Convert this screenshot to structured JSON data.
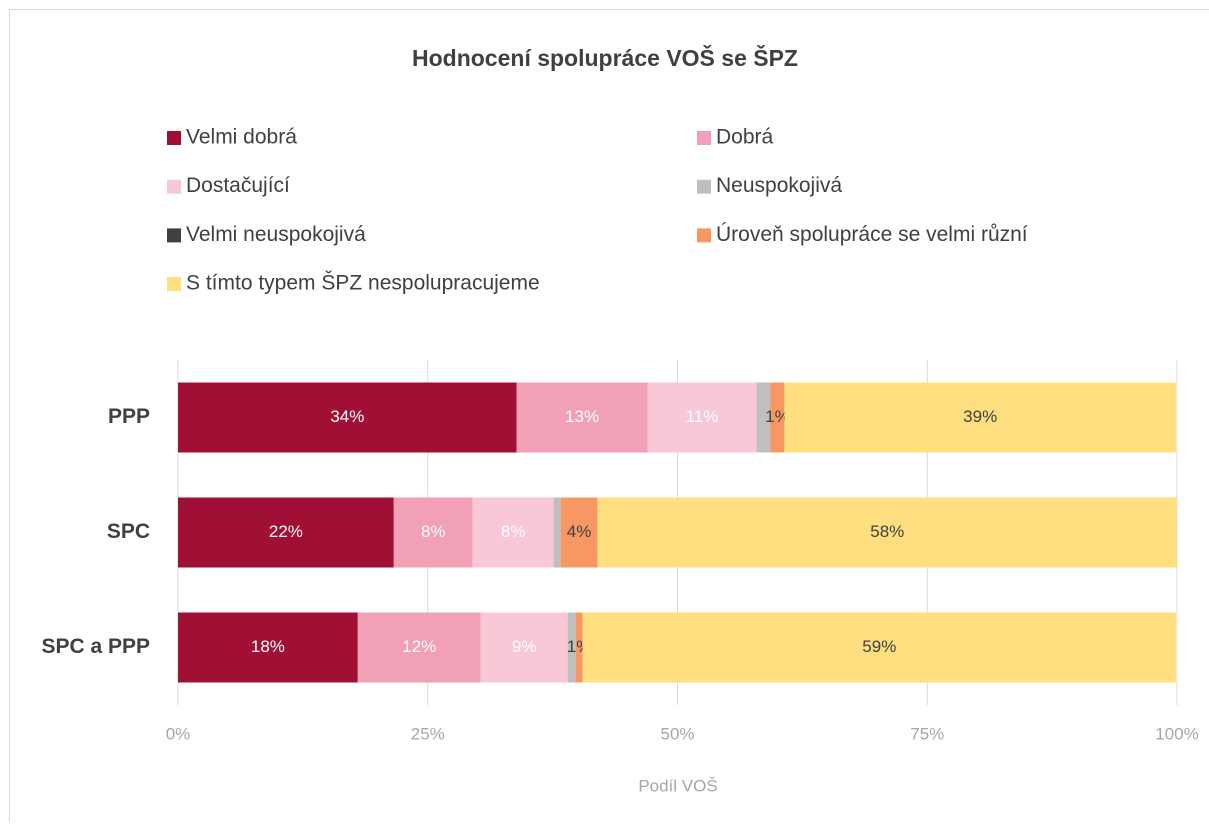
{
  "chart_data": {
    "type": "stacked-bar-horizontal",
    "title": "Hodnocení spolupráce VOŠ se ŠPZ",
    "x_label": "Podíl VOŠ",
    "categories": [
      "PPP",
      "SPC",
      "SPC a PPP"
    ],
    "series": [
      {
        "name": "Velmi dobrá",
        "color": "#a01035",
        "values": [
          33.9,
          21.6,
          18.0
        ],
        "value_labels": [
          "34%",
          "22%",
          "18%"
        ]
      },
      {
        "name": "Dobrá",
        "color": "#f2a0b5",
        "values": [
          13.1,
          7.9,
          12.3
        ],
        "value_labels": [
          "13%",
          "8%",
          "12%"
        ]
      },
      {
        "name": "Dostačující",
        "color": "#f8c8d6",
        "values": [
          10.9,
          8.1,
          8.7
        ],
        "value_labels": [
          "11%",
          "8%",
          "9%"
        ]
      },
      {
        "name": "Neuspokojivá",
        "color": "#bfbfbf",
        "values": [
          1.4,
          0.7,
          0.8
        ],
        "value_labels": [
          null,
          null,
          null
        ]
      },
      {
        "name": "Velmi neuspokojivá",
        "color": "#404040",
        "values": [
          0,
          0,
          0
        ],
        "value_labels": [
          null,
          null,
          null
        ]
      },
      {
        "name": "Úroveň spolupráce se velmi různí",
        "color": "#f79862",
        "values": [
          1.4,
          3.7,
          0.7
        ],
        "value_labels": [
          "1%",
          "4%",
          "1%"
        ]
      },
      {
        "name": "S tímto typem ŠPZ nespolupracujeme",
        "color": "#ffdf80",
        "values": [
          39.2,
          58.0,
          59.4
        ],
        "value_labels": [
          "39%",
          "58%",
          "59%"
        ]
      }
    ],
    "xlim": [
      0,
      100
    ],
    "xticks": [
      {
        "value": 0,
        "label": "0%"
      },
      {
        "value": 25,
        "label": "25%"
      },
      {
        "value": 50,
        "label": "50%"
      },
      {
        "value": 75,
        "label": "75%"
      },
      {
        "value": 100,
        "label": "100%"
      }
    ],
    "grid": true
  }
}
